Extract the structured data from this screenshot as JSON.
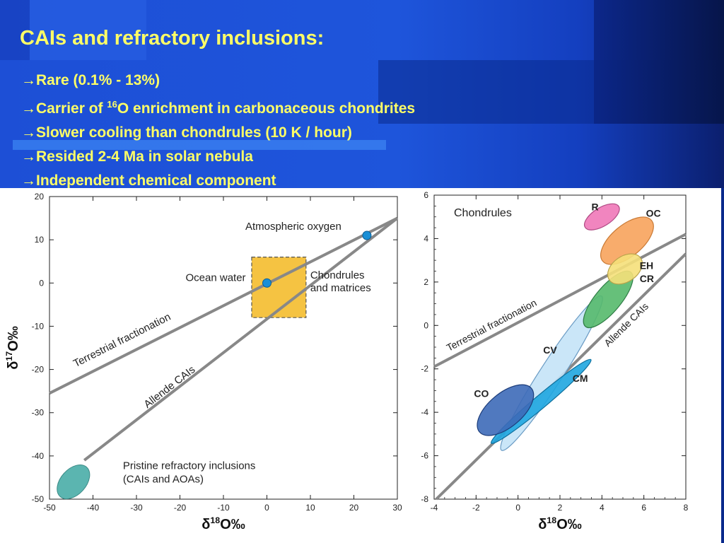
{
  "slide": {
    "title": "CAIs and refractory inclusions:",
    "bullets": [
      {
        "arrow": "→",
        "text": "Rare (0.1% - 13%)"
      },
      {
        "arrow": "→",
        "pre": "Carrier of ",
        "sup": "16",
        "post": "O enrichment in carbonaceous chondrites"
      },
      {
        "arrow": "→",
        "text": "Slower cooling than chondrules (10 K / hour)"
      },
      {
        "arrow": "→",
        "text": "Resided 2-4 Ma in solar nebula"
      },
      {
        "arrow": "→",
        "text": "Independent chemical component"
      }
    ],
    "colors": {
      "title": "#ffff66",
      "background": "#1e55db"
    }
  },
  "chart_data": [
    {
      "type": "scatter",
      "xlabel": "δ18O‰",
      "ylabel": "δ17O‰",
      "xlim": [
        -50,
        30
      ],
      "ylim": [
        -50,
        20
      ],
      "xticks": [
        -50,
        -40,
        -30,
        -20,
        -10,
        0,
        10,
        20,
        30
      ],
      "yticks": [
        -50,
        -40,
        -30,
        -20,
        -10,
        0,
        10,
        20
      ],
      "points": [
        {
          "label": "Atmospheric oxygen",
          "x": 23,
          "y": 11,
          "color": "#1a8fd6"
        },
        {
          "label": "Ocean water",
          "x": 0,
          "y": 0,
          "color": "#1a8fd6"
        }
      ],
      "lines": [
        {
          "label": "Terrestrial fractionation",
          "from": [
            -50,
            -25.5
          ],
          "to": [
            30,
            15
          ],
          "color": "#888888"
        },
        {
          "label": "Allende CAIs",
          "from": [
            -42,
            -41
          ],
          "to": [
            30,
            15
          ],
          "color": "#888888"
        }
      ],
      "regions": [
        {
          "label": "Chondrules and matrices",
          "xrange": [
            -3.5,
            9
          ],
          "yrange": [
            -8,
            6
          ],
          "color": "#f5c342"
        },
        {
          "label": "Pristine refractory inclusions (CAIs and AOAs)",
          "center": [
            -44.5,
            -46
          ],
          "color": "#5bb5b0"
        }
      ]
    },
    {
      "type": "scatter",
      "title": "Chondrules",
      "xlabel": "δ18O‰",
      "ylabel": "",
      "xlim": [
        -4,
        8
      ],
      "ylim": [
        -8,
        6
      ],
      "xticks": [
        -4,
        -2,
        0,
        2,
        4,
        6,
        8
      ],
      "yticks": [
        -8,
        -6,
        -4,
        -2,
        0,
        2,
        4,
        6
      ],
      "lines": [
        {
          "label": "Terrestrial fractionation",
          "from": [
            -4,
            -1.9
          ],
          "to": [
            8,
            4.2
          ],
          "color": "#888888"
        },
        {
          "label": "Allende CAIs",
          "from": [
            -3.9,
            -8
          ],
          "to": [
            8,
            3.3
          ],
          "color": "#888888"
        }
      ],
      "regions": [
        {
          "label": "R",
          "center": [
            4,
            5
          ],
          "color": "#ef78b8"
        },
        {
          "label": "OC",
          "center": [
            5.2,
            3.9
          ],
          "color": "#f7a35c"
        },
        {
          "label": "EH",
          "center": [
            5.1,
            2.6
          ],
          "color": "#f5e07a"
        },
        {
          "label": "CR",
          "center": [
            4.3,
            1.2
          ],
          "color": "#55b96b"
        },
        {
          "label": "CV",
          "center": [
            1.6,
            -2.2
          ],
          "color": "#c4e3f7"
        },
        {
          "label": "CM",
          "center": [
            1.1,
            -3.5
          ],
          "color": "#1fa6e0"
        },
        {
          "label": "CO",
          "center": [
            -0.6,
            -3.9
          ],
          "color": "#3d6ab8"
        }
      ]
    }
  ]
}
